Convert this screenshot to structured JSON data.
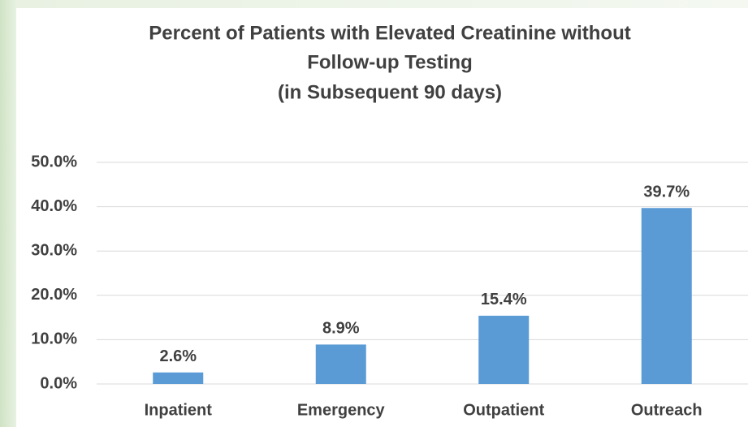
{
  "chart_data": {
    "type": "bar",
    "title": [
      "Percent of Patients with Elevated Creatinine without",
      "Follow-up Testing",
      "(in Subsequent 90 days)"
    ],
    "categories": [
      "Inpatient",
      "Emergency",
      "Outpatient",
      "Outreach"
    ],
    "values": [
      2.6,
      8.9,
      15.4,
      39.7
    ],
    "value_labels": [
      "2.6%",
      "8.9%",
      "15.4%",
      "39.7%"
    ],
    "color": "#5b9bd5",
    "ylim": [
      0,
      50
    ],
    "yticks": [
      {
        "value": 0,
        "label": "0.0%"
      },
      {
        "value": 10,
        "label": "10.0%"
      },
      {
        "value": 20,
        "label": "20.0%"
      },
      {
        "value": 30,
        "label": "30.0%"
      },
      {
        "value": 40,
        "label": "40.0%"
      },
      {
        "value": 50,
        "label": "50.0%"
      }
    ],
    "grid": true
  }
}
